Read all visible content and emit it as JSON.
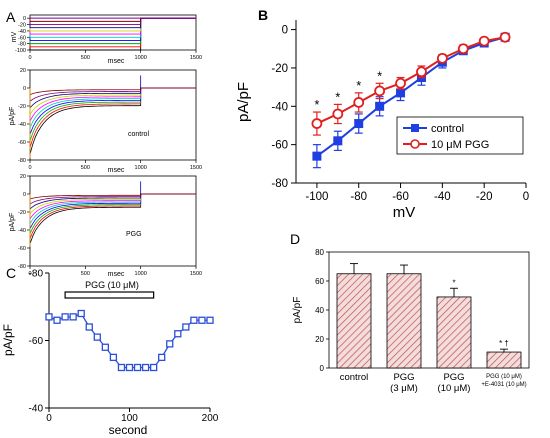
{
  "panel_labels": {
    "a": "A",
    "b": "B",
    "c": "C",
    "d": "D"
  },
  "chart_data": [
    {
      "id": "A-protocol",
      "type": "line",
      "xlabel": "msec",
      "ylabel": "mV",
      "xticks": [
        "0",
        "500",
        "1000",
        "1500"
      ],
      "yticks": [
        "0",
        "-20",
        "-40",
        "-60",
        "-80",
        "-100"
      ],
      "xlim": [
        0,
        1500
      ],
      "ylim": [
        -100,
        10
      ],
      "steps_mV": [
        -100,
        -90,
        -80,
        -70,
        -60,
        -50,
        -40,
        -30,
        -20,
        -10
      ],
      "step_start_ms": 0,
      "step_end_ms": 1000,
      "holding_mV": 0,
      "colors": [
        "#000000",
        "#ff0000",
        "#00b000",
        "#0000ff",
        "#00c8c8",
        "#ff00ff",
        "#d0d000",
        "#000080",
        "#800080",
        "#800000"
      ]
    },
    {
      "id": "A-control",
      "type": "line",
      "annotation": "control",
      "xlabel": "msec",
      "ylabel": "pA/pF",
      "xticks": [
        "0",
        "500",
        "1000",
        "1500"
      ],
      "yticks": [
        "20",
        "0",
        "-20",
        "-40",
        "-60",
        "-80"
      ],
      "xlim": [
        0,
        1500
      ],
      "ylim": [
        -80,
        20
      ]
    },
    {
      "id": "A-PGG",
      "type": "line",
      "annotation": "PGG",
      "xlabel": "msec",
      "ylabel": "pA/pF",
      "xticks": [
        "0",
        "500",
        "1000",
        "1500"
      ],
      "yticks": [
        "20",
        "0",
        "-20",
        "-40",
        "-60",
        "-80"
      ],
      "xlim": [
        0,
        1500
      ],
      "ylim": [
        -80,
        20
      ]
    },
    {
      "id": "B",
      "type": "line",
      "xlabel": "mV",
      "ylabel": "pA/pF",
      "xlim": [
        -110,
        0
      ],
      "ylim": [
        -80,
        5
      ],
      "xticks": [
        -100,
        -80,
        -60,
        -40,
        -20,
        0
      ],
      "yticks": [
        0,
        -20,
        -40,
        -60,
        -80
      ],
      "x": [
        -100,
        -90,
        -80,
        -70,
        -60,
        -50,
        -40,
        -30,
        -20,
        -10
      ],
      "significance_marker": "*",
      "significant_at": [
        -100,
        -90,
        -80,
        -70
      ],
      "legend_position": "center-right",
      "series": [
        {
          "name": "control",
          "color": "#1f3fe0",
          "marker": "filled-square",
          "values": [
            -66,
            -58,
            -49,
            -40,
            -33,
            -25,
            -17,
            -11,
            -7,
            -4
          ],
          "errors": [
            6,
            5,
            5,
            5,
            4,
            4,
            3,
            2,
            1.5,
            1
          ]
        },
        {
          "name": "10 μM PGG",
          "color": "#e02020",
          "marker": "open-circle",
          "values": [
            -49,
            -44,
            -38,
            -32,
            -28,
            -22,
            -15,
            -10,
            -6,
            -4
          ],
          "errors": [
            6,
            5,
            5,
            4,
            3,
            3,
            2,
            2,
            1.5,
            1
          ]
        }
      ]
    },
    {
      "id": "C",
      "type": "line",
      "xlabel": "second",
      "ylabel": "pA/pF",
      "xlim": [
        0,
        200
      ],
      "ylim": [
        -80,
        -40
      ],
      "xticks": [
        0,
        100,
        200
      ],
      "yticks": [
        -80,
        -60,
        -40
      ],
      "bar_label": "PGG (10 μM)",
      "bar_start": 20,
      "bar_end": 130,
      "color": "#2b4fd8",
      "x": [
        0,
        10,
        20,
        30,
        40,
        50,
        60,
        70,
        80,
        90,
        100,
        110,
        120,
        130,
        140,
        150,
        160,
        170,
        180,
        190,
        200
      ],
      "y": [
        -67,
        -66,
        -67,
        -67,
        -68,
        -64,
        -61,
        -58,
        -55,
        -52,
        -52,
        -52,
        -52,
        -52,
        -55,
        -59,
        -62,
        -64,
        -66,
        -66,
        -66
      ]
    },
    {
      "id": "D",
      "type": "bar",
      "ylabel": "pA/pF",
      "ylim": [
        0,
        80
      ],
      "yticks": [
        0,
        20,
        40,
        60,
        80
      ],
      "categories": [
        {
          "line1": "control",
          "line2": ""
        },
        {
          "line1": "PGG",
          "line2": "(3 μM)"
        },
        {
          "line1": "PGG",
          "line2": "(10 μM)"
        },
        {
          "line1": "PGG (10 μM)",
          "line2": "+E-4031 (10 μM)"
        }
      ],
      "values": [
        65,
        65,
        49,
        11
      ],
      "errors": [
        7,
        6,
        6,
        2
      ],
      "significance": [
        "",
        "",
        "*",
        "* †"
      ],
      "bar_color": "#c0504d"
    }
  ]
}
